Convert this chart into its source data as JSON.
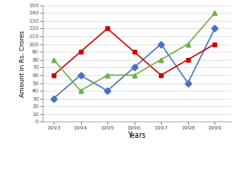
{
  "years": [
    1993,
    1994,
    1995,
    1996,
    1997,
    1998,
    1999
  ],
  "company_x": [
    30,
    60,
    40,
    70,
    100,
    50,
    120
  ],
  "company_z": [
    60,
    90,
    120,
    90,
    60,
    80,
    100
  ],
  "company_y": [
    80,
    40,
    60,
    60,
    80,
    100,
    140
  ],
  "colors": {
    "company_x": "#4472C4",
    "company_z": "#CC0000",
    "company_y": "#70AD47"
  },
  "markers": {
    "company_x": "D",
    "company_z": "s",
    "company_y": "^"
  },
  "xlabel": "Years",
  "ylabel": "Amount in Rs. Crores",
  "ylim": [
    0,
    150
  ],
  "yticks": [
    0,
    10,
    20,
    30,
    40,
    50,
    60,
    70,
    80,
    90,
    100,
    110,
    120,
    130,
    140,
    150
  ],
  "bg_color": "#FFFFFF",
  "grid_color": "#DDDDDD"
}
